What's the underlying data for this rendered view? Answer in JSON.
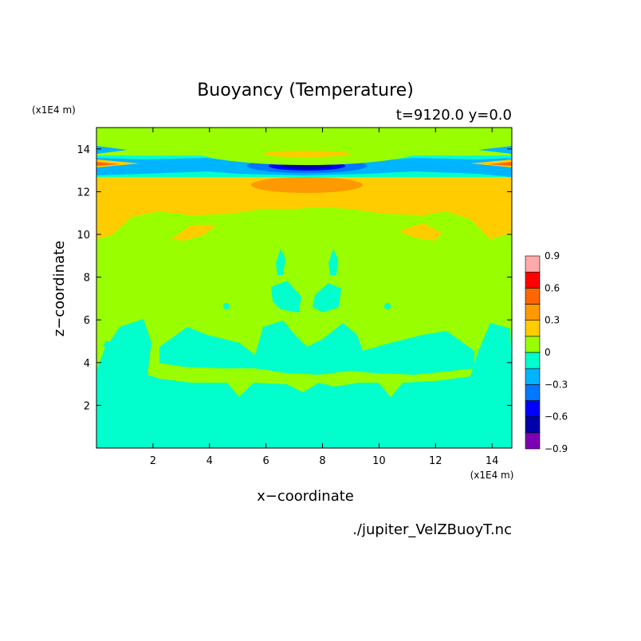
{
  "chart_data": {
    "type": "heatmap",
    "title": "Buoyancy (Temperature)",
    "subtitle": "t=9120.0 y=0.0",
    "xlabel": "x−coordinate",
    "ylabel": "z−coordinate",
    "x_unit": "(x1E4 m)",
    "y_unit": "(x1E4 m)",
    "xlim": [
      0,
      14.7
    ],
    "ylim": [
      0,
      15
    ],
    "xticks": [
      2,
      4,
      6,
      8,
      10,
      12,
      14
    ],
    "yticks": [
      2,
      4,
      6,
      8,
      10,
      12,
      14
    ],
    "source_label": "./jupiter_VelZBuoyT.nc",
    "colorbar": {
      "levels": [
        -0.9,
        -0.75,
        -0.6,
        -0.45,
        -0.3,
        -0.15,
        0,
        0.15,
        0.3,
        0.45,
        0.6,
        0.75,
        0.9
      ],
      "tick_labels": [
        "0.9",
        "0.6",
        "0.3",
        "0",
        "−0.3",
        "−0.6",
        "−0.9"
      ],
      "tick_values": [
        0.9,
        0.6,
        0.3,
        0,
        -0.3,
        -0.6,
        -0.9
      ],
      "colors": [
        "#7f00b2",
        "#0000aa",
        "#0000ff",
        "#0078ff",
        "#00b4ff",
        "#00ffcc",
        "#99ff00",
        "#ffcc00",
        "#ff9900",
        "#ff6600",
        "#ff0000",
        "#ffaaaa"
      ]
    },
    "dominant_field": {
      "lower_region_z_0_to_4": -0.1,
      "middle_region_z_4_to_11": 0.05,
      "upper_band_z_11_to_13": 0.2,
      "top_region_z_13_to_15": -0.1
    }
  }
}
